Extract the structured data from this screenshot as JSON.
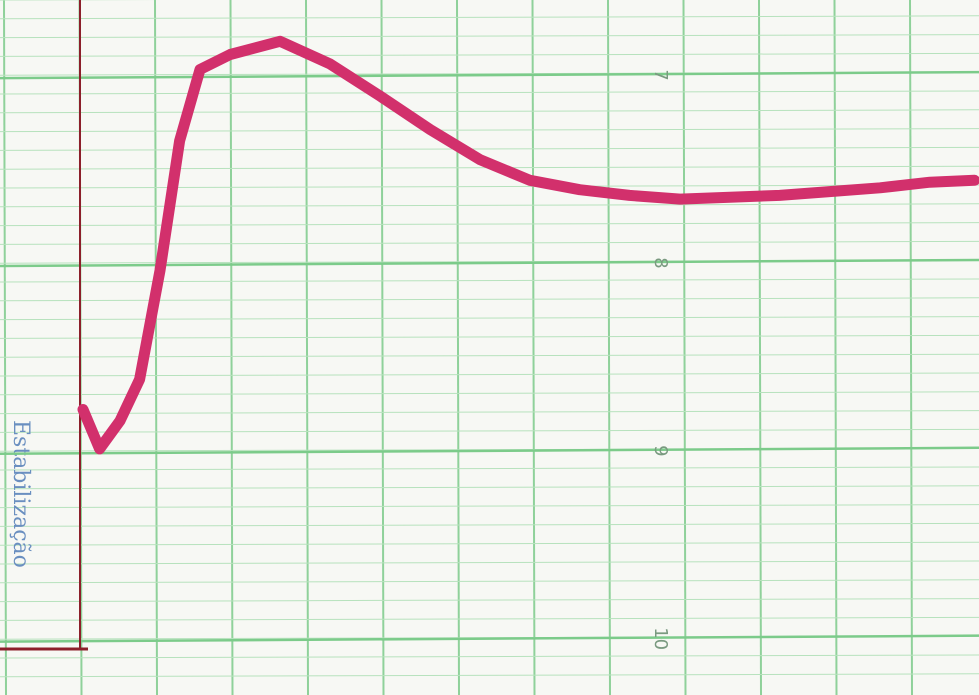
{
  "chart_data": {
    "type": "line",
    "annotation": "Estabilização",
    "x": [
      0.04,
      0.26,
      0.53,
      0.79,
      1.06,
      1.32,
      1.59,
      1.99,
      2.65,
      3.31,
      3.97,
      4.64,
      5.3,
      5.96,
      6.62,
      7.28,
      7.95,
      8.61,
      9.27,
      9.93,
      10.6,
      11.26,
      11.85
    ],
    "series": [
      {
        "color": "#d2306c",
        "values": [
          8.78,
          8.99,
          8.84,
          8.62,
          8.04,
          7.35,
          6.97,
          6.89,
          6.82,
          6.94,
          7.11,
          7.29,
          7.45,
          7.56,
          7.61,
          7.64,
          7.66,
          7.65,
          7.64,
          7.62,
          7.6,
          7.57,
          7.56
        ]
      }
    ],
    "xlim": [
      -1.06,
      11.91
    ],
    "ylim": [
      10.3,
      6.6
    ],
    "yticks": [
      7,
      8,
      9,
      10
    ],
    "grid": true
  }
}
